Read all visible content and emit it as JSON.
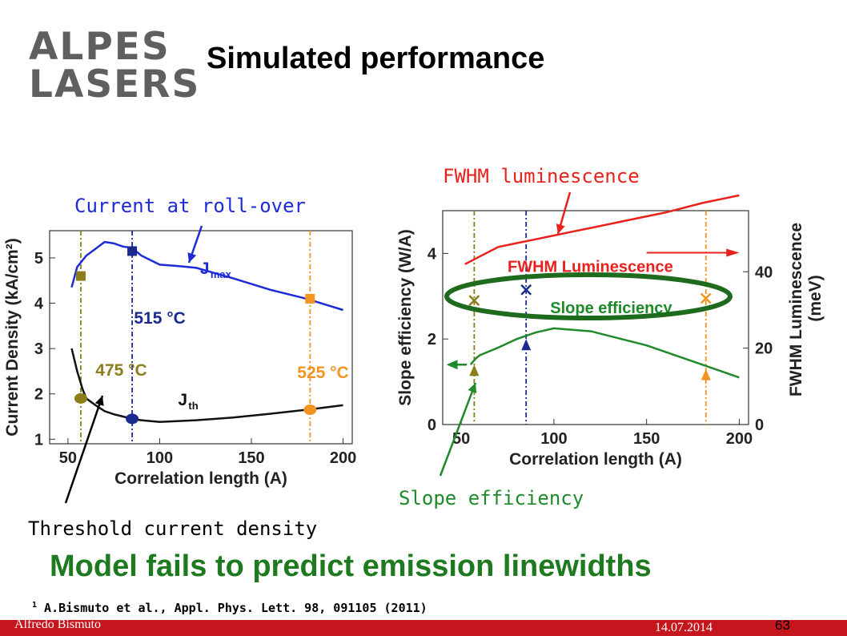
{
  "logo": {
    "line1": "ALPES",
    "line2": "LASERS"
  },
  "title": "Simulated performance",
  "callouts": {
    "roll_over": "Current at roll-over",
    "threshold": "Threshold current density",
    "fwhm": "FWHM luminescence",
    "slope": "Slope efficiency"
  },
  "conclusion": "Model fails to predict emission linewidths",
  "reference": {
    "sup": "1",
    "text": " A.Bismuto et al., Appl. Phys. Lett. 98, 091105 (2011)"
  },
  "footer": {
    "author": "Alfredo Bismuto",
    "date": "14.07.2014",
    "page": "63"
  },
  "colors": {
    "blue": "#1d2bd6",
    "black": "#111111",
    "olive": "#8a7d1a",
    "orange": "#f39420",
    "navy": "#1b2a8c",
    "red": "#e8211c",
    "green": "#1f8a2a",
    "dark_green": "#1e6b1e",
    "footer": "#c4161c"
  },
  "chart_data": [
    {
      "type": "line",
      "xlabel": "Correlation length (A)",
      "ylabel": "Current Density (kA/cm²)",
      "xlim": [
        40,
        205
      ],
      "ylim": [
        0.9,
        5.6
      ],
      "xticks": [
        50,
        100,
        150,
        200
      ],
      "yticks": [
        1,
        2,
        3,
        4,
        5
      ],
      "grid": false,
      "series": [
        {
          "name": "Jmax",
          "color": "blue",
          "x": [
            52,
            55,
            60,
            65,
            70,
            75,
            80,
            85,
            90,
            100,
            110,
            120,
            140,
            160,
            180,
            200
          ],
          "y": [
            4.35,
            4.8,
            5.05,
            5.2,
            5.35,
            5.32,
            5.25,
            5.22,
            5.05,
            4.85,
            4.82,
            4.78,
            4.55,
            4.3,
            4.1,
            3.85
          ]
        },
        {
          "name": "Jth",
          "color": "black",
          "x": [
            52,
            55,
            58,
            60,
            65,
            70,
            75,
            80,
            85,
            90,
            100,
            120,
            140,
            160,
            180,
            200
          ],
          "y": [
            3.0,
            2.5,
            2.1,
            1.9,
            1.75,
            1.62,
            1.55,
            1.5,
            1.45,
            1.42,
            1.38,
            1.42,
            1.48,
            1.56,
            1.65,
            1.75
          ]
        }
      ],
      "points": [
        {
          "color": "olive",
          "shape": "square",
          "x": 57,
          "y": 4.6
        },
        {
          "color": "olive",
          "shape": "circle",
          "x": 57,
          "y": 1.9
        },
        {
          "color": "navy",
          "shape": "square",
          "x": 85,
          "y": 5.15
        },
        {
          "color": "navy",
          "shape": "circle",
          "x": 85,
          "y": 1.45
        },
        {
          "color": "orange",
          "shape": "square",
          "x": 182,
          "y": 4.1
        },
        {
          "color": "orange",
          "shape": "circle",
          "x": 182,
          "y": 1.65
        }
      ],
      "vlines": [
        {
          "x": 57,
          "color": "olive",
          "label": "475 °C"
        },
        {
          "x": 85,
          "color": "navy",
          "label": "515 °C"
        },
        {
          "x": 182,
          "color": "orange",
          "label": "525 °C"
        }
      ],
      "series_labels": [
        {
          "text": "J",
          "sub": "max",
          "color": "blue"
        },
        {
          "text": "J",
          "sub": "th",
          "color": "black"
        }
      ]
    },
    {
      "type": "line",
      "xlabel": "Correlation length (A)",
      "ylabel": "Slope efficiency (W/A)",
      "ylabel_right": [
        "FWHM Luminescence",
        "(meV)"
      ],
      "xlim": [
        40,
        205
      ],
      "ylim": [
        0,
        5.0
      ],
      "ylim_right": [
        0,
        56
      ],
      "xticks": [
        50,
        100,
        150,
        200
      ],
      "yticks": [
        0,
        2,
        4
      ],
      "yticks_right": [
        0,
        20,
        40
      ],
      "grid": false,
      "series": [
        {
          "name": "FWHM Luminescence",
          "color": "red",
          "axis": "right",
          "x": [
            52,
            60,
            70,
            80,
            90,
            100,
            110,
            120,
            140,
            160,
            180,
            200
          ],
          "y": [
            42,
            44,
            46.5,
            47.5,
            48.5,
            49.5,
            50.5,
            51.5,
            53.5,
            55.5,
            58,
            60
          ]
        },
        {
          "name": "Slope efficiency",
          "color": "green",
          "axis": "left",
          "x": [
            55,
            58,
            60,
            70,
            80,
            90,
            100,
            120,
            150,
            180,
            200
          ],
          "y": [
            1.4,
            1.55,
            1.62,
            1.8,
            2.0,
            2.15,
            2.25,
            2.18,
            1.85,
            1.4,
            1.1
          ]
        }
      ],
      "points": [
        {
          "color": "olive",
          "shape": "x",
          "x": 57,
          "y": 2.9
        },
        {
          "color": "olive",
          "shape": "triangle",
          "x": 57,
          "y": 1.25
        },
        {
          "color": "navy",
          "shape": "x",
          "x": 85,
          "y": 3.15
        },
        {
          "color": "navy",
          "shape": "triangle",
          "x": 85,
          "y": 1.85
        },
        {
          "color": "orange",
          "shape": "x",
          "x": 182,
          "y": 2.95
        },
        {
          "color": "orange",
          "shape": "triangle",
          "x": 182,
          "y": 1.15
        }
      ],
      "vlines": [
        {
          "x": 57,
          "color": "olive"
        },
        {
          "x": 85,
          "color": "navy"
        },
        {
          "x": 182,
          "color": "orange"
        }
      ]
    }
  ]
}
